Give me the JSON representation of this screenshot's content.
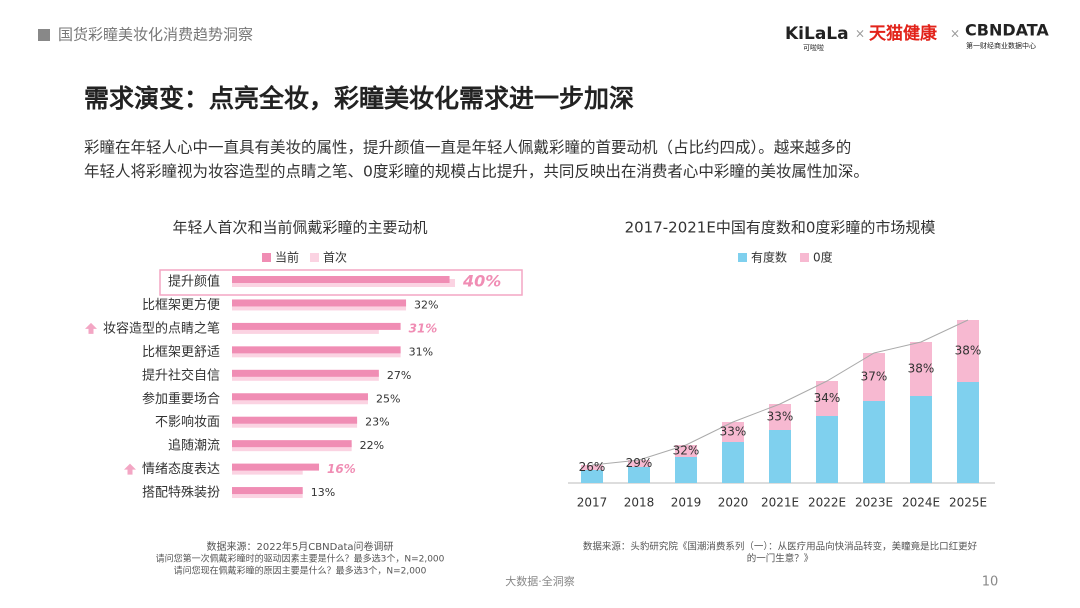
{
  "header": {
    "section": "国货彩瞳美妆化消费趋势洞察",
    "logos": [
      "KiLaLa",
      "可啦啦",
      "天猫健康",
      "CBNDATA",
      "第一财经商业数据中心"
    ]
  },
  "title": "需求演变：点亮全妆，彩瞳美妆化需求进一步加深",
  "body": [
    "彩瞳在年轻人心中一直具有美妆的属性，提升颜值一直是年轻人佩戴彩瞳的首要动机（占比约四成）。越来越多的",
    "年轻人将彩瞳视为妆容造型的点睛之笔、0度彩瞳的规模占比提升，共同反映出在消费者心中彩瞳的美妆属性加深。"
  ],
  "chart_data": [
    {
      "type": "hbar",
      "title": "年轻人首次和当前佩戴彩瞳的主要动机",
      "categories": [
        "提升颜值",
        "比框架更方便",
        "妆容造型的点睛之笔",
        "比框架更舒适",
        "提升社交自信",
        "参加重要场合",
        "不影响妆面",
        "追随潮流",
        "情绪态度表达",
        "搭配特殊装扮"
      ],
      "series": [
        {
          "name": "当前",
          "color": "#f08db4",
          "values": [
            40,
            32,
            31,
            31,
            27,
            25,
            23,
            22,
            16,
            13
          ],
          "value_labels": [
            "40%",
            "32%",
            "31%",
            "31%",
            "27%",
            "25%",
            "23%",
            "22%",
            "16%",
            "13%"
          ]
        },
        {
          "name": "首次",
          "color": "#fbd3e2",
          "values": [
            41,
            32,
            27,
            31,
            27,
            25,
            23,
            22,
            13,
            13
          ]
        }
      ],
      "emphasized": [
        0,
        2,
        8
      ],
      "rising": [
        2,
        8
      ],
      "source": [
        "数据来源：2022年5月CBNData问卷调研",
        "请问您第一次佩戴彩瞳时的驱动因素主要是什么？最多选3个，N=2,000",
        "请问您现在佩戴彩瞳的原因主要是什么？最多选3个，N=2,000"
      ]
    },
    {
      "type": "stacked_bar",
      "title": "2017-2021E中国有度数和0度彩瞳的市场规模",
      "categories": [
        "2017",
        "2018",
        "2019",
        "2020",
        "2021E",
        "2022E",
        "2023E",
        "2024E",
        "2025E"
      ],
      "series": [
        {
          "name": "有度数",
          "color": "#7fd0ee",
          "values": [
            13,
            16,
            26,
            41,
            53,
            67,
            82,
            87,
            101
          ]
        },
        {
          "name": "0度",
          "color": "#f7b9d1",
          "values": [
            5,
            7,
            12,
            20,
            26,
            35,
            48,
            54,
            62
          ]
        }
      ],
      "share_labels": [
        "26%",
        "29%",
        "32%",
        "33%",
        "33%",
        "34%",
        "37%",
        "38%",
        "38%"
      ],
      "source": [
        "数据来源：头豹研究院《国潮消费系列（一）：从医疗用品向快消品转变，美瞳竟是比口红更好",
        "的一门生意？》"
      ]
    }
  ],
  "footer": {
    "brand": "大数据·全洞察",
    "page": "10"
  }
}
